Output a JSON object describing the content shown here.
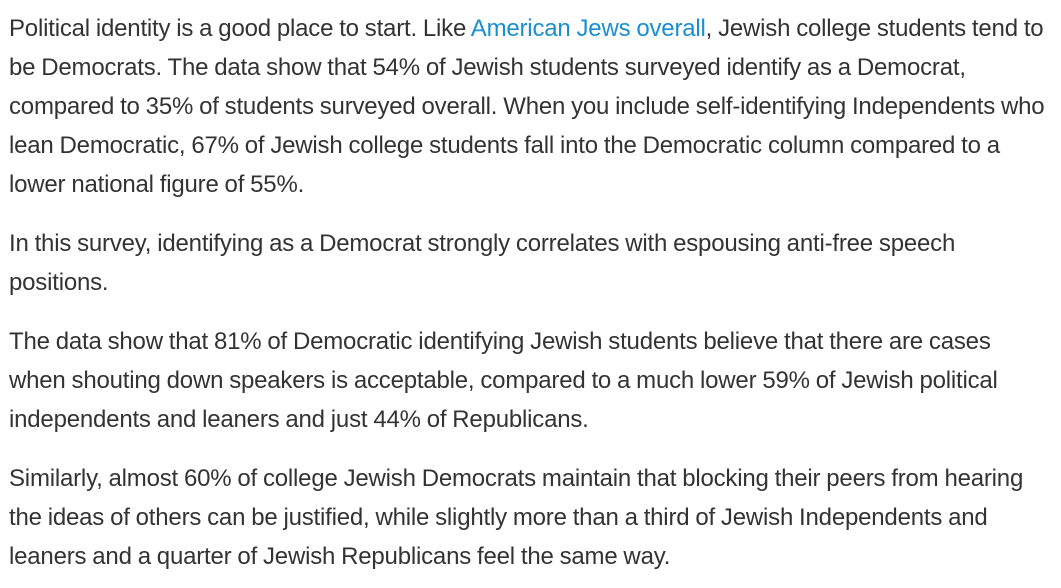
{
  "article": {
    "paragraph_1": {
      "before_link": "Political identity is a good place to start. Like ",
      "link_text": "American Jews overall",
      "after_link": ", Jewish college students tend to be Democrats. The data show that 54% of Jewish students surveyed identify as a Democrat, compared to 35% of students surveyed overall. When you include self-identifying Independents who lean Democratic, 67% of Jewish college students fall into the Democratic column compared to a lower national figure of 55%."
    },
    "paragraph_2": "In this survey, identifying as a Democrat strongly correlates with espousing anti-free speech positions.",
    "paragraph_3": "The data show that 81% of Democratic identifying Jewish students believe that there are cases when shouting down speakers is acceptable, compared to a much lower 59% of Jewish political independents and leaners and just 44% of Republicans.",
    "paragraph_4": "Similarly, almost 60% of college Jewish Democrats maintain that blocking their peers from hearing the ideas of others can be justified, while slightly more than a third of Jewish Independents and leaners and a quarter of Jewish Republicans feel the same way."
  },
  "colors": {
    "text": "#333333",
    "link": "#1a8fd0",
    "background": "#ffffff"
  }
}
